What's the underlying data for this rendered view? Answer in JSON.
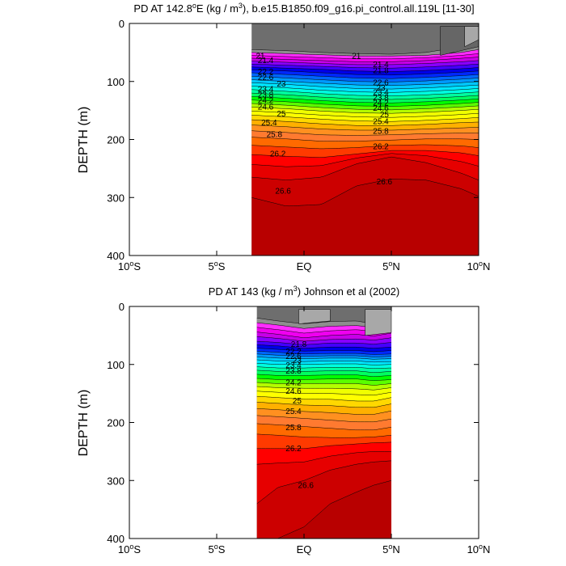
{
  "chart_data": [
    {
      "type": "contour",
      "title_main": "PD AT 142.8",
      "title_deg": "o",
      "title_unit": "E (kg / m",
      "title_exp": "3",
      "title_rest": "), b.e15.B1850.f09_g16.pi_control.all.119L [11-30]",
      "ylabel": "DEPTH (m)",
      "xlim": [
        -10,
        10
      ],
      "ylim": [
        400,
        0
      ],
      "x_ticks": [
        {
          "value": -10,
          "num": "10",
          "sup": "o",
          "suffix": "S"
        },
        {
          "value": -5,
          "num": "5",
          "sup": "o",
          "suffix": "S"
        },
        {
          "value": 0,
          "num": "EQ",
          "sup": "",
          "suffix": ""
        },
        {
          "value": 5,
          "num": "5",
          "sup": "o",
          "suffix": "N"
        },
        {
          "value": 10,
          "num": "10",
          "sup": "o",
          "suffix": "N"
        }
      ],
      "y_ticks": [
        "0",
        "100",
        "200",
        "300",
        "400"
      ],
      "data_x_range": [
        -3,
        10
      ],
      "levels": [
        21,
        21.2,
        21.4,
        21.6,
        21.8,
        22,
        22.2,
        22.4,
        22.6,
        22.8,
        23,
        23.2,
        23.4,
        23.6,
        23.8,
        24,
        24.2,
        24.4,
        24.6,
        24.8,
        25,
        25.2,
        25.4,
        25.6,
        25.8,
        26,
        26.2,
        26.4,
        26.6,
        26.8
      ],
      "isopycnal_depths": {
        "x": [
          -3,
          -1,
          1,
          3,
          5,
          7,
          9,
          10
        ],
        "depth": [
          [
            45,
            47,
            50,
            52,
            53,
            50,
            40,
            35
          ],
          [
            50,
            52,
            54,
            56,
            56,
            55,
            50,
            45
          ],
          [
            55,
            57,
            59,
            61,
            61,
            59,
            55,
            52
          ],
          [
            60,
            62,
            64,
            66,
            66,
            64,
            60,
            58
          ],
          [
            65,
            67,
            69,
            71,
            71,
            69,
            66,
            64
          ],
          [
            70,
            72,
            74,
            76,
            77,
            75,
            72,
            70
          ],
          [
            75,
            77,
            79,
            82,
            83,
            81,
            78,
            76
          ],
          [
            80,
            82,
            85,
            88,
            89,
            87,
            84,
            82
          ],
          [
            85,
            88,
            91,
            94,
            95,
            93,
            90,
            88
          ],
          [
            91,
            94,
            97,
            100,
            101,
            99,
            96,
            94
          ],
          [
            97,
            100,
            103,
            106,
            107,
            105,
            102,
            100
          ],
          [
            102,
            105,
            109,
            112,
            113,
            111,
            108,
            106
          ],
          [
            108,
            111,
            115,
            118,
            119,
            117,
            114,
            112
          ],
          [
            114,
            117,
            121,
            124,
            125,
            123,
            120,
            118
          ],
          [
            120,
            123,
            127,
            130,
            131,
            129,
            126,
            124
          ],
          [
            126,
            129,
            133,
            136,
            137,
            135,
            132,
            130
          ],
          [
            132,
            135,
            139,
            142,
            143,
            141,
            138,
            136
          ],
          [
            138,
            141,
            145,
            148,
            149,
            147,
            144,
            142
          ],
          [
            144,
            147,
            151,
            154,
            155,
            153,
            150,
            148
          ],
          [
            151,
            154,
            158,
            161,
            162,
            160,
            157,
            155
          ],
          [
            158,
            161,
            165,
            168,
            169,
            167,
            164,
            162
          ],
          [
            166,
            169,
            173,
            176,
            176,
            174,
            171,
            170
          ],
          [
            175,
            178,
            182,
            184,
            184,
            182,
            180,
            179
          ],
          [
            185,
            188,
            192,
            193,
            192,
            190,
            189,
            189
          ],
          [
            196,
            199,
            203,
            203,
            201,
            199,
            199,
            200
          ],
          [
            210,
            213,
            216,
            214,
            210,
            209,
            211,
            214
          ],
          [
            226,
            229,
            231,
            225,
            219,
            219,
            223,
            228
          ],
          [
            243,
            247,
            245,
            232,
            224,
            228,
            238,
            246
          ],
          [
            265,
            270,
            265,
            242,
            230,
            240,
            258,
            270
          ],
          [
            300,
            315,
            312,
            280,
            268,
            270,
            285,
            298
          ]
        ]
      },
      "topo": [
        {
          "x": [
            7.8,
            10
          ],
          "top": [
            5,
            5
          ],
          "bottom": [
            55,
            40
          ],
          "color": "#666666"
        },
        {
          "x": [
            9.2,
            10
          ],
          "top": [
            5,
            5
          ],
          "bottom": [
            40,
            28
          ],
          "color": "#a8a8a8"
        }
      ],
      "line_labels": [
        {
          "text": "21",
          "x": -2.5,
          "depth": 55
        },
        {
          "text": "21.4",
          "x": -2.2,
          "depth": 63
        },
        {
          "text": "21",
          "x": 3,
          "depth": 55
        },
        {
          "text": "21.4",
          "x": 4.4,
          "depth": 70
        },
        {
          "text": "21.8",
          "x": 4.4,
          "depth": 80
        },
        {
          "text": "22.2",
          "x": -2.2,
          "depth": 82
        },
        {
          "text": "22.6",
          "x": -2.2,
          "depth": 92
        },
        {
          "text": "22.6",
          "x": 4.4,
          "depth": 101
        },
        {
          "text": "23",
          "x": -1.3,
          "depth": 103
        },
        {
          "text": "23.4",
          "x": -2.2,
          "depth": 112
        },
        {
          "text": "23.8",
          "x": -2.2,
          "depth": 122
        },
        {
          "text": "24.2",
          "x": -2.2,
          "depth": 132
        },
        {
          "text": "24.6",
          "x": -2.2,
          "depth": 143
        },
        {
          "text": "23",
          "x": 4.4,
          "depth": 110
        },
        {
          "text": "23.4",
          "x": 4.4,
          "depth": 118
        },
        {
          "text": "23.8",
          "x": 4.4,
          "depth": 127
        },
        {
          "text": "24.2",
          "x": 4.4,
          "depth": 136
        },
        {
          "text": "24.6",
          "x": 4.4,
          "depth": 145
        },
        {
          "text": "25",
          "x": -1.3,
          "depth": 155
        },
        {
          "text": "25",
          "x": 4.6,
          "depth": 156
        },
        {
          "text": "25.4",
          "x": -2.0,
          "depth": 170
        },
        {
          "text": "25.4",
          "x": 4.4,
          "depth": 168
        },
        {
          "text": "25.8",
          "x": -1.7,
          "depth": 190
        },
        {
          "text": "25.8",
          "x": 4.4,
          "depth": 185
        },
        {
          "text": "26.2",
          "x": -1.5,
          "depth": 224
        },
        {
          "text": "26.2",
          "x": 4.4,
          "depth": 211
        },
        {
          "text": "26.6",
          "x": 4.6,
          "depth": 272
        },
        {
          "text": "26.6",
          "x": -1.2,
          "depth": 288
        }
      ]
    },
    {
      "type": "contour",
      "title_main": "PD AT 143 (kg / m",
      "title_exp": "3",
      "title_rest": ") Johnson et al (2002)",
      "ylabel": "DEPTH (m)",
      "xlim": [
        -10,
        10
      ],
      "ylim": [
        400,
        0
      ],
      "x_ticks": [
        {
          "value": -10,
          "num": "10",
          "sup": "o",
          "suffix": "S"
        },
        {
          "value": -5,
          "num": "5",
          "sup": "o",
          "suffix": "S"
        },
        {
          "value": 0,
          "num": "EQ",
          "sup": "",
          "suffix": ""
        },
        {
          "value": 5,
          "num": "5",
          "sup": "o",
          "suffix": "N"
        },
        {
          "value": 10,
          "num": "10",
          "sup": "o",
          "suffix": "N"
        }
      ],
      "y_ticks": [
        "0",
        "100",
        "200",
        "300",
        "400"
      ],
      "data_x_range": [
        -2.7,
        5
      ],
      "levels": [
        21,
        21.2,
        21.4,
        21.6,
        21.8,
        22,
        22.2,
        22.4,
        22.6,
        22.8,
        23,
        23.2,
        23.4,
        23.6,
        23.8,
        24,
        24.2,
        24.4,
        24.6,
        24.8,
        25,
        25.2,
        25.4,
        25.6,
        25.8,
        26,
        26.2,
        26.4,
        26.6,
        26.8
      ],
      "isopycnal_depths": {
        "x": [
          -2.7,
          -1.5,
          0,
          1.5,
          3,
          4,
          5
        ],
        "depth": [
          [
            20,
            25,
            30,
            26,
            25,
            30,
            25
          ],
          [
            28,
            32,
            38,
            34,
            33,
            36,
            32
          ],
          [
            36,
            40,
            46,
            42,
            40,
            43,
            38
          ],
          [
            44,
            48,
            54,
            50,
            48,
            51,
            46
          ],
          [
            52,
            55,
            60,
            57,
            56,
            58,
            54
          ],
          [
            60,
            62,
            66,
            63,
            63,
            65,
            62
          ],
          [
            66,
            68,
            72,
            70,
            70,
            72,
            70
          ],
          [
            72,
            74,
            77,
            76,
            76,
            78,
            76
          ],
          [
            77,
            79,
            82,
            81,
            81,
            83,
            82
          ],
          [
            82,
            84,
            86,
            85,
            85,
            87,
            86
          ],
          [
            87,
            89,
            90,
            89,
            89,
            91,
            90
          ],
          [
            92,
            94,
            95,
            94,
            94,
            96,
            95
          ],
          [
            98,
            100,
            100,
            99,
            99,
            101,
            100
          ],
          [
            104,
            106,
            106,
            105,
            105,
            107,
            106
          ],
          [
            110,
            112,
            112,
            111,
            111,
            114,
            112
          ],
          [
            117,
            119,
            119,
            118,
            118,
            121,
            119
          ],
          [
            124,
            126,
            126,
            125,
            125,
            128,
            126
          ],
          [
            131,
            133,
            133,
            133,
            133,
            136,
            133
          ],
          [
            138,
            140,
            141,
            141,
            142,
            144,
            140
          ],
          [
            146,
            148,
            150,
            150,
            152,
            153,
            148
          ],
          [
            155,
            157,
            160,
            160,
            163,
            163,
            157
          ],
          [
            165,
            167,
            170,
            171,
            174,
            174,
            168
          ],
          [
            176,
            178,
            181,
            183,
            186,
            186,
            180
          ],
          [
            188,
            190,
            193,
            196,
            199,
            199,
            194
          ],
          [
            202,
            204,
            207,
            210,
            213,
            213,
            208
          ],
          [
            220,
            222,
            225,
            226,
            226,
            225,
            222
          ],
          [
            245,
            245,
            245,
            240,
            237,
            235,
            234
          ],
          [
            272,
            270,
            268,
            258,
            252,
            250,
            250
          ],
          [
            340,
            312,
            300,
            282,
            272,
            268,
            266
          ],
          [
            400,
            400,
            380,
            340,
            320,
            308,
            300
          ]
        ]
      },
      "topo": [
        {
          "x": [
            -0.3,
            1.5
          ],
          "top": [
            5,
            5
          ],
          "bottom": [
            30,
            25
          ],
          "color": "#a8a8a8"
        },
        {
          "x": [
            3.5,
            5
          ],
          "top": [
            5,
            5
          ],
          "bottom": [
            50,
            45
          ],
          "color": "#a8a8a8"
        }
      ],
      "line_labels": [
        {
          "text": "21.8",
          "x": -0.3,
          "depth": 64
        },
        {
          "text": "22.2",
          "x": -0.6,
          "depth": 77
        },
        {
          "text": "22.6",
          "x": -0.6,
          "depth": 85
        },
        {
          "text": "23",
          "x": -0.4,
          "depth": 92
        },
        {
          "text": "23.4",
          "x": -0.6,
          "depth": 100
        },
        {
          "text": "23.8",
          "x": -0.6,
          "depth": 110
        },
        {
          "text": "24.2",
          "x": -0.6,
          "depth": 130
        },
        {
          "text": "24.6",
          "x": -0.6,
          "depth": 145
        },
        {
          "text": "25",
          "x": -0.4,
          "depth": 162
        },
        {
          "text": "25.4",
          "x": -0.6,
          "depth": 180
        },
        {
          "text": "25.8",
          "x": -0.6,
          "depth": 208
        },
        {
          "text": "26.2",
          "x": -0.6,
          "depth": 244
        },
        {
          "text": "26.6",
          "x": 0.1,
          "depth": 307
        }
      ]
    }
  ],
  "colors": {
    "below_min": "#555555",
    "palette": [
      "#6e6e6e",
      "#8e8e8e",
      "#ff2cff",
      "#f000f0",
      "#c800e8",
      "#8a00ff",
      "#4400ff",
      "#0000e8",
      "#0028ff",
      "#0066ff",
      "#0099ff",
      "#00c8ff",
      "#00e6ff",
      "#00ffe0",
      "#00ffa0",
      "#00ff60",
      "#00ff00",
      "#5aff00",
      "#b4ff00",
      "#f0ff00",
      "#ffff00",
      "#ffd800",
      "#ffb000",
      "#ff9020",
      "#ff7a30",
      "#ff6a00",
      "#ff3a00",
      "#ff0000",
      "#e60000",
      "#cc0000",
      "#b80000"
    ]
  }
}
